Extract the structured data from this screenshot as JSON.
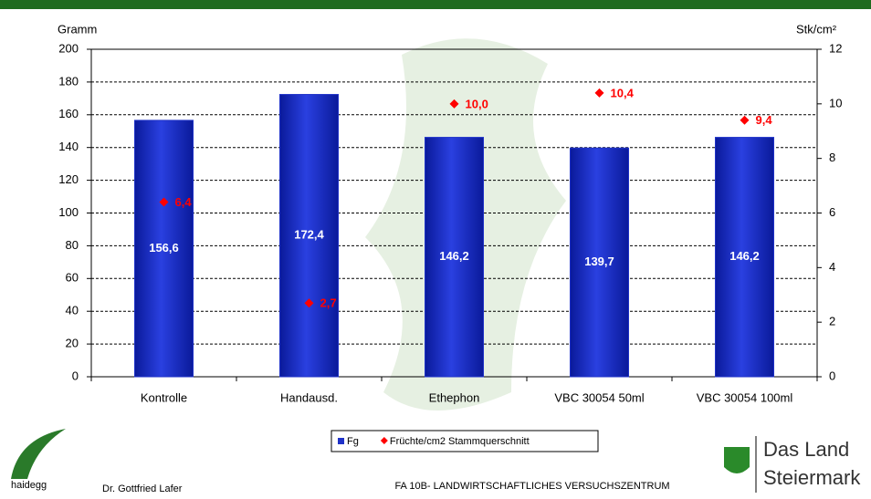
{
  "chart_data": {
    "type": "bar",
    "ylabel": "Gramm",
    "y2label": "Stk/cm²",
    "categories": [
      "Kontrolle",
      "Handausd.",
      "Ethephon",
      "VBC 30054 50ml",
      "VBC 30054 100ml"
    ],
    "series": [
      {
        "name": "Fg",
        "color": "#1f32c8",
        "values": [
          156.6,
          172.4,
          146.2,
          139.7,
          146.2
        ],
        "value_labels": [
          "156,6",
          "172,4",
          "146,2",
          "139,7",
          "146,2"
        ]
      },
      {
        "name": "Früchte/cm2 Stammquerschnitt",
        "color": "#ff0000",
        "axis": "y2",
        "marker": "diamond",
        "values": [
          6.4,
          2.7,
          10.0,
          10.4,
          9.4
        ],
        "value_labels": [
          "6,4",
          "2,7",
          "10,0",
          "10,4",
          "9,4"
        ]
      }
    ],
    "ylim": [
      0,
      200
    ],
    "yticks": [
      0,
      20,
      40,
      60,
      80,
      100,
      120,
      140,
      160,
      180,
      200
    ],
    "y2lim": [
      0,
      12
    ],
    "y2ticks": [
      0,
      2,
      4,
      6,
      8,
      10,
      12
    ],
    "grid": true,
    "legend": "bottom"
  },
  "footer": {
    "logo": "haidegg",
    "author": "Dr. Gottfried Lafer",
    "institution": "FA 10B- LANDWIRTSCHAFTLICHES VERSUCHSZENTRUM",
    "brand_line1": "Das Land",
    "brand_line2": "Steiermark"
  }
}
